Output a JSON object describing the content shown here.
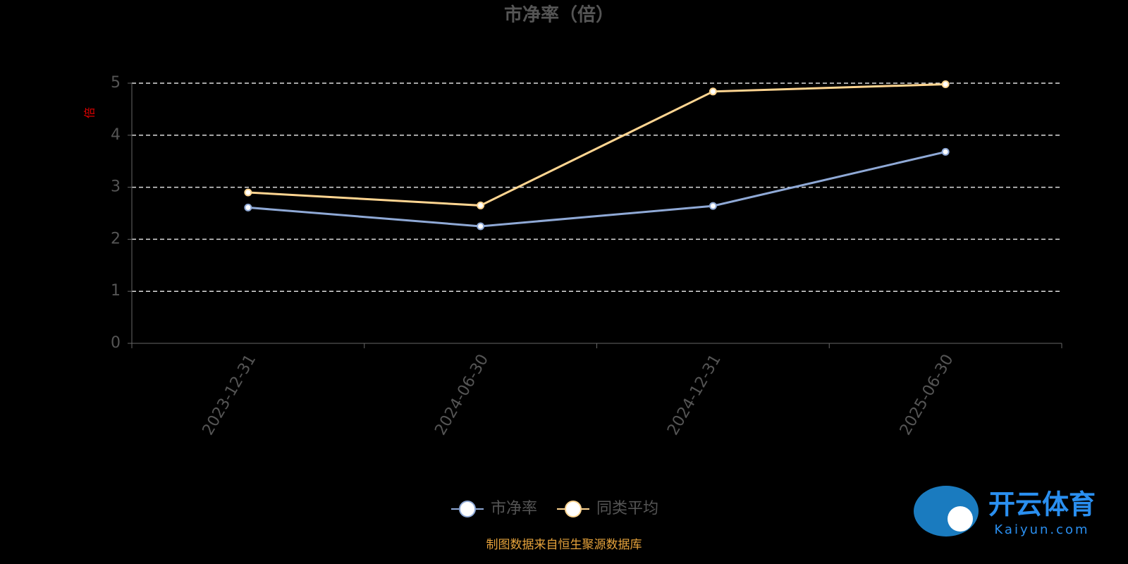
{
  "chart_data": {
    "type": "line",
    "title": "市净率（倍）",
    "y_label": "倍",
    "categories": [
      "2023-12-31",
      "2024-06-30",
      "2024-12-31",
      "2025-06-30"
    ],
    "series": [
      {
        "name": "市净率",
        "color": "#8fa9d6",
        "values": [
          2.61,
          2.25,
          2.64,
          3.68
        ]
      },
      {
        "name": "同类平均",
        "color": "#ffd591",
        "values": [
          2.9,
          2.65,
          4.84,
          4.98
        ]
      }
    ],
    "ylim": [
      0,
      5
    ],
    "yticks": [
      0,
      1,
      2,
      3,
      4,
      5
    ],
    "grid": true,
    "source": "制图数据来自恒生聚源数据库",
    "watermark": {
      "brand": "开云体育",
      "site": "Kaiyun.com"
    }
  }
}
